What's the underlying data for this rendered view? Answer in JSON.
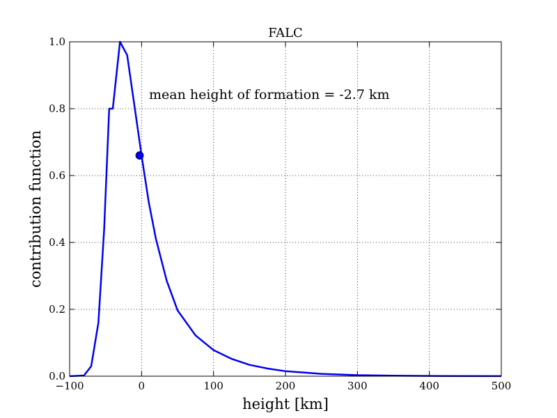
{
  "chart_data": {
    "type": "line",
    "title": "FALC",
    "xlabel": "height [km]",
    "ylabel": "contribution function",
    "xlim": [
      -100,
      500
    ],
    "ylim": [
      0.0,
      1.0
    ],
    "xticks": [
      -100,
      0,
      100,
      200,
      300,
      400,
      500
    ],
    "xtick_labels": [
      "−100",
      "0",
      "100",
      "200",
      "300",
      "400",
      "500"
    ],
    "yticks": [
      0.0,
      0.2,
      0.4,
      0.6,
      0.8,
      1.0
    ],
    "ytick_labels": [
      "0.0",
      "0.2",
      "0.4",
      "0.6",
      "0.8",
      "1.0"
    ],
    "grid": true,
    "series": [
      {
        "color": "#0000ee",
        "x": [
          -100,
          -80,
          -70,
          -60,
          -52,
          -45,
          -40,
          -30,
          -20,
          -10,
          0,
          10,
          20,
          35,
          50,
          75,
          100,
          125,
          150,
          175,
          200,
          250,
          300,
          350,
          400,
          500
        ],
        "y": [
          0.0,
          0.002,
          0.03,
          0.16,
          0.44,
          0.8,
          0.8,
          1.0,
          0.96,
          0.81,
          0.66,
          0.52,
          0.41,
          0.285,
          0.197,
          0.122,
          0.078,
          0.052,
          0.034,
          0.023,
          0.015,
          0.007,
          0.003,
          0.0015,
          0.0007,
          0.0002
        ]
      }
    ],
    "marker": {
      "x": -2.7,
      "y": 0.66,
      "color": "#0000ee"
    },
    "annotation": {
      "text": "mean height of formation = -2.7 km"
    }
  }
}
